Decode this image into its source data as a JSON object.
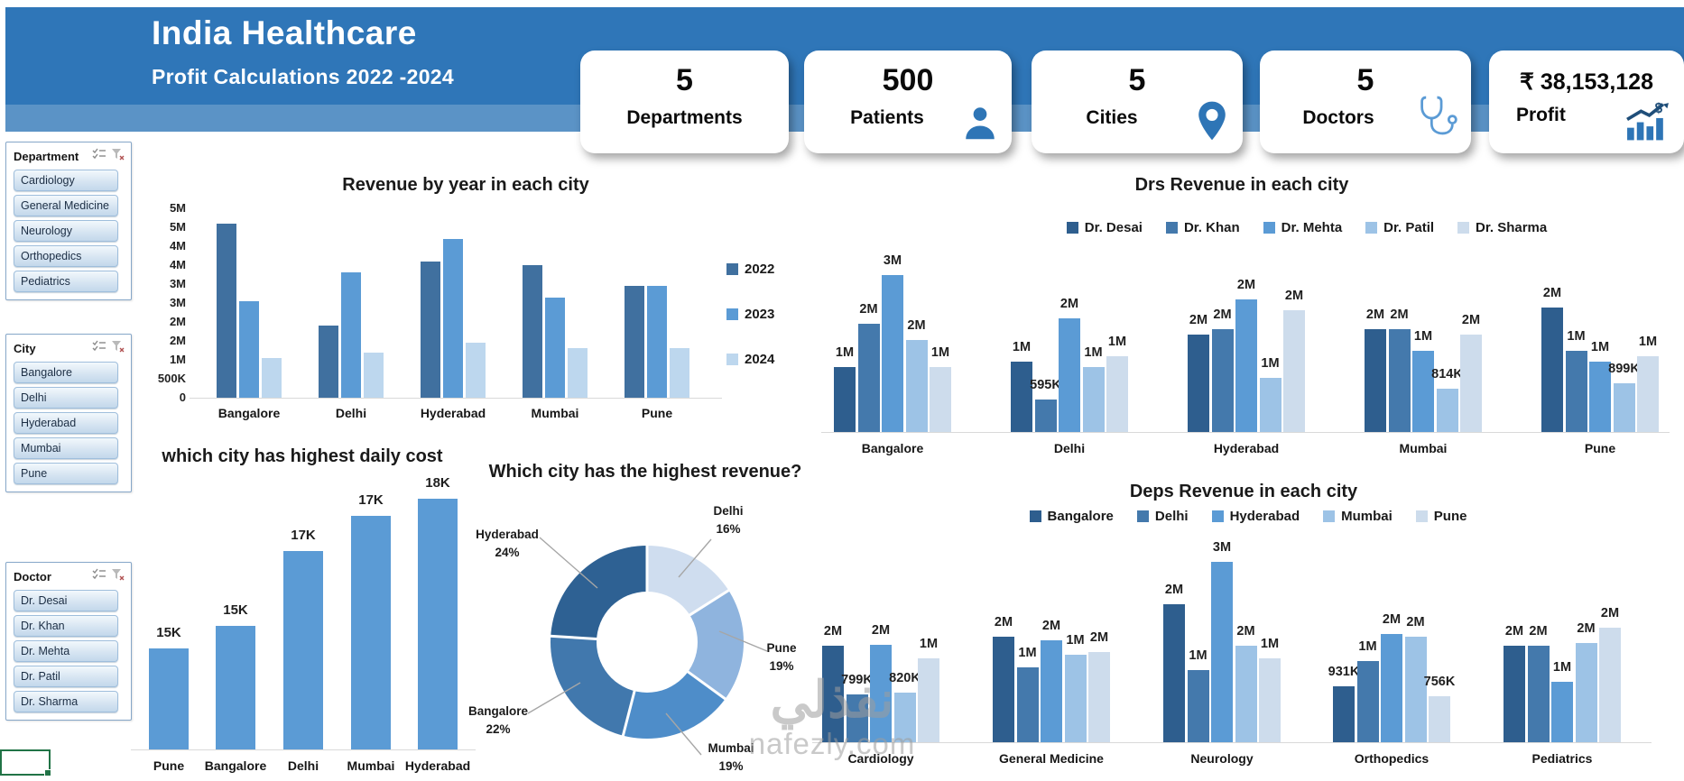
{
  "header": {
    "title": "India Healthcare",
    "subtitle": "Profit Calculations 2022 -2024"
  },
  "kpis": [
    {
      "value": "5",
      "label": "Departments",
      "icon": "none"
    },
    {
      "value": "500",
      "label": "Patients",
      "icon": "person-icon"
    },
    {
      "value": "5",
      "label": "Cities",
      "icon": "map-pin-icon"
    },
    {
      "value": "5",
      "label": "Doctors",
      "icon": "stethoscope-icon"
    },
    {
      "value": "₹ 38,153,128",
      "label": "Profit",
      "icon": "profit-growth-icon"
    }
  ],
  "slicers": [
    {
      "title": "Department",
      "items": [
        "Cardiology",
        "General Medicine",
        "Neurology",
        "Orthopedics",
        "Pediatrics"
      ]
    },
    {
      "title": "City",
      "items": [
        "Bangalore",
        "Delhi",
        "Hyderabad",
        "Mumbai",
        "Pune"
      ]
    },
    {
      "title": "Doctor",
      "items": [
        "Dr. Desai",
        "Dr. Khan",
        "Dr. Mehta",
        "Dr. Patil",
        "Dr. Sharma"
      ]
    }
  ],
  "watermark": {
    "arabic": "نفذلي",
    "domain": "nafezly.com"
  },
  "chart_data": [
    {
      "id": "revenue_by_year",
      "type": "bar",
      "title": "Revenue by year in each city",
      "categories": [
        "Bangalore",
        "Delhi",
        "Hyderabad",
        "Mumbai",
        "Pune"
      ],
      "unit": "millions",
      "ylim": [
        0,
        5
      ],
      "y_ticks_top_to_bottom": [
        "5M",
        "5M",
        "4M",
        "4M",
        "3M",
        "3M",
        "2M",
        "2M",
        "1M",
        "500K",
        "0"
      ],
      "legend_position": "right",
      "gridlines": false,
      "series": [
        {
          "name": "2022",
          "color": "#40709F",
          "values": [
            4.6,
            1.9,
            3.6,
            3.5,
            2.95
          ]
        },
        {
          "name": "2023",
          "color": "#5B9BD5",
          "values": [
            2.55,
            3.3,
            4.2,
            2.65,
            2.95
          ]
        },
        {
          "name": "2024",
          "color": "#BDD7EE",
          "values": [
            1.05,
            1.2,
            1.45,
            1.3,
            1.3
          ]
        }
      ]
    },
    {
      "id": "daily_cost",
      "type": "bar",
      "title": "which city has highest daily cost",
      "categories": [
        "Pune",
        "Bangalore",
        "Delhi",
        "Mumbai",
        "Hyderabad"
      ],
      "unit": "thousands",
      "values": [
        14.5,
        15.0,
        16.7,
        17.5,
        17.9
      ],
      "labels": [
        "15K",
        "15K",
        "17K",
        "17K",
        "18K"
      ],
      "color": "#5B9BD5",
      "axis_visible": false
    },
    {
      "id": "revenue_share",
      "type": "donut",
      "title": "Which city has the highest revenue?",
      "start_angle_deg": 0,
      "direction": "clockwise",
      "slices": [
        {
          "label": "Delhi",
          "pct": 16,
          "color": "#CFDDEF"
        },
        {
          "label": "Pune",
          "pct": 19,
          "color": "#8FB4DE"
        },
        {
          "label": "Mumbai",
          "pct": 19,
          "color": "#4E8DC9"
        },
        {
          "label": "Bangalore",
          "pct": 22,
          "color": "#4178AD"
        },
        {
          "label": "Hyderabad",
          "pct": 24,
          "color": "#2E6193"
        }
      ]
    },
    {
      "id": "drs_revenue",
      "type": "bar",
      "title": "Drs Revenue in each city",
      "categories": [
        "Bangalore",
        "Delhi",
        "Hyderabad",
        "Mumbai",
        "Pune"
      ],
      "unit": "millions",
      "legend_position": "top",
      "series": [
        {
          "name": "Dr. Desai",
          "color": "#2E5E8E",
          "values": [
            1.2,
            1.3,
            1.8,
            1.9,
            2.3
          ],
          "labels": [
            "1M",
            "1M",
            "2M",
            "2M",
            "2M"
          ]
        },
        {
          "name": "Dr. Khan",
          "color": "#4479AC",
          "values": [
            2.0,
            0.6,
            1.9,
            1.9,
            1.5
          ],
          "labels": [
            "2M",
            "595K",
            "2M",
            "2M",
            "1M"
          ]
        },
        {
          "name": "Dr. Mehta",
          "color": "#5B9BD5",
          "values": [
            2.9,
            2.1,
            2.45,
            1.5,
            1.3
          ],
          "labels": [
            "3M",
            "2M",
            "2M",
            "1M",
            "1M"
          ]
        },
        {
          "name": "Dr. Patil",
          "color": "#9DC3E6",
          "values": [
            1.7,
            1.2,
            1.0,
            0.8,
            0.9
          ],
          "labels": [
            "2M",
            "1M",
            "1M",
            "814K",
            "899K"
          ]
        },
        {
          "name": "Dr. Sharma",
          "color": "#CDDCEC",
          "values": [
            1.2,
            1.4,
            2.25,
            1.8,
            1.4
          ],
          "labels": [
            "1M",
            "1M",
            "2M",
            "2M",
            "1M"
          ]
        }
      ]
    },
    {
      "id": "deps_revenue",
      "type": "bar",
      "title": "Deps Revenue in each city",
      "categories": [
        "Cardiology",
        "General Medicine",
        "Neurology",
        "Orthopedics",
        "Pediatrics"
      ],
      "unit": "millions",
      "legend_position": "top",
      "series": [
        {
          "name": "Bangalore",
          "color": "#2E5E8E",
          "values": [
            1.6,
            1.75,
            2.3,
            0.93,
            1.6
          ],
          "labels": [
            "2M",
            "2M",
            "2M",
            "931K",
            "2M"
          ]
        },
        {
          "name": "Delhi",
          "color": "#4479AC",
          "values": [
            0.8,
            1.25,
            1.2,
            1.35,
            1.6
          ],
          "labels": [
            "799K",
            "1M",
            "1M",
            "1M",
            "2M"
          ]
        },
        {
          "name": "Hyderabad",
          "color": "#5B9BD5",
          "values": [
            1.62,
            1.7,
            3.0,
            1.8,
            1.0
          ],
          "labels": [
            "2M",
            "2M",
            "3M",
            "2M",
            "1M"
          ]
        },
        {
          "name": "Mumbai",
          "color": "#9DC3E6",
          "values": [
            0.82,
            1.45,
            1.6,
            1.75,
            1.65
          ],
          "labels": [
            "820K",
            "1M",
            "2M",
            "2M",
            "2M"
          ]
        },
        {
          "name": "Pune",
          "color": "#CDDCEC",
          "values": [
            1.4,
            1.5,
            1.4,
            0.76,
            1.9
          ],
          "labels": [
            "1M",
            "2M",
            "1M",
            "756K",
            "2M"
          ]
        }
      ]
    }
  ]
}
